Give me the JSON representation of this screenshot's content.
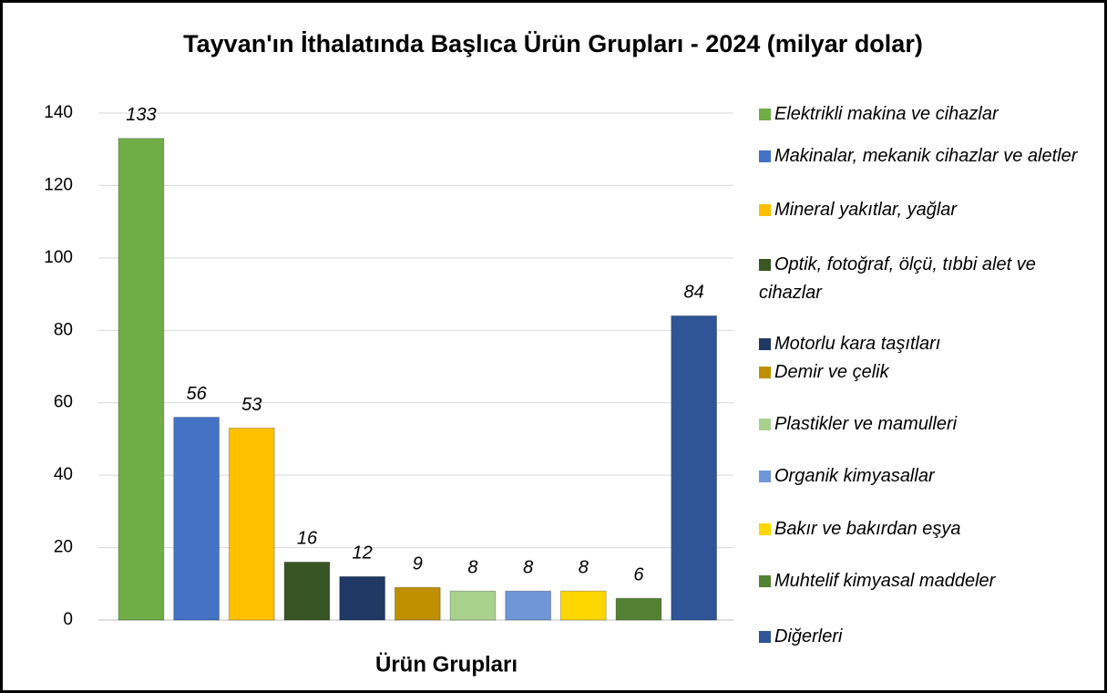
{
  "chart_data": {
    "type": "bar",
    "title": "Tayvan'ın İthalatında Başlıca Ürün Grupları - 2024 (milyar dolar)",
    "x_label": "Ürün Grupları",
    "categories": [
      "Elektrikli makina ve cihazlar",
      "Makinalar, mekanik cihazlar ve aletler",
      "Mineral yakıtlar, yağlar",
      "Optik, fotoğraf, ölçü, tıbbi alet ve cihazlar",
      "Motorlu kara taşıtları",
      "Demir ve çelik",
      "Plastikler ve mamulleri",
      "Organik kimyasallar",
      "Bakır ve bakırdan eşya",
      "Muhtelif kimyasal maddeler",
      "Diğerleri"
    ],
    "values": [
      133,
      56,
      53,
      16,
      12,
      9,
      8,
      8,
      8,
      6,
      84
    ],
    "colors": [
      "#70ad47",
      "#4472c4",
      "#ffc000",
      "#375623",
      "#203864",
      "#bf8f00",
      "#a9d18e",
      "#6f96d6",
      "#ffd700",
      "#548235",
      "#2f5597"
    ],
    "ylim": [
      0,
      140
    ],
    "yticks": [
      0,
      20,
      40,
      60,
      80,
      100,
      120,
      140
    ],
    "grid": true,
    "legend": "right"
  }
}
